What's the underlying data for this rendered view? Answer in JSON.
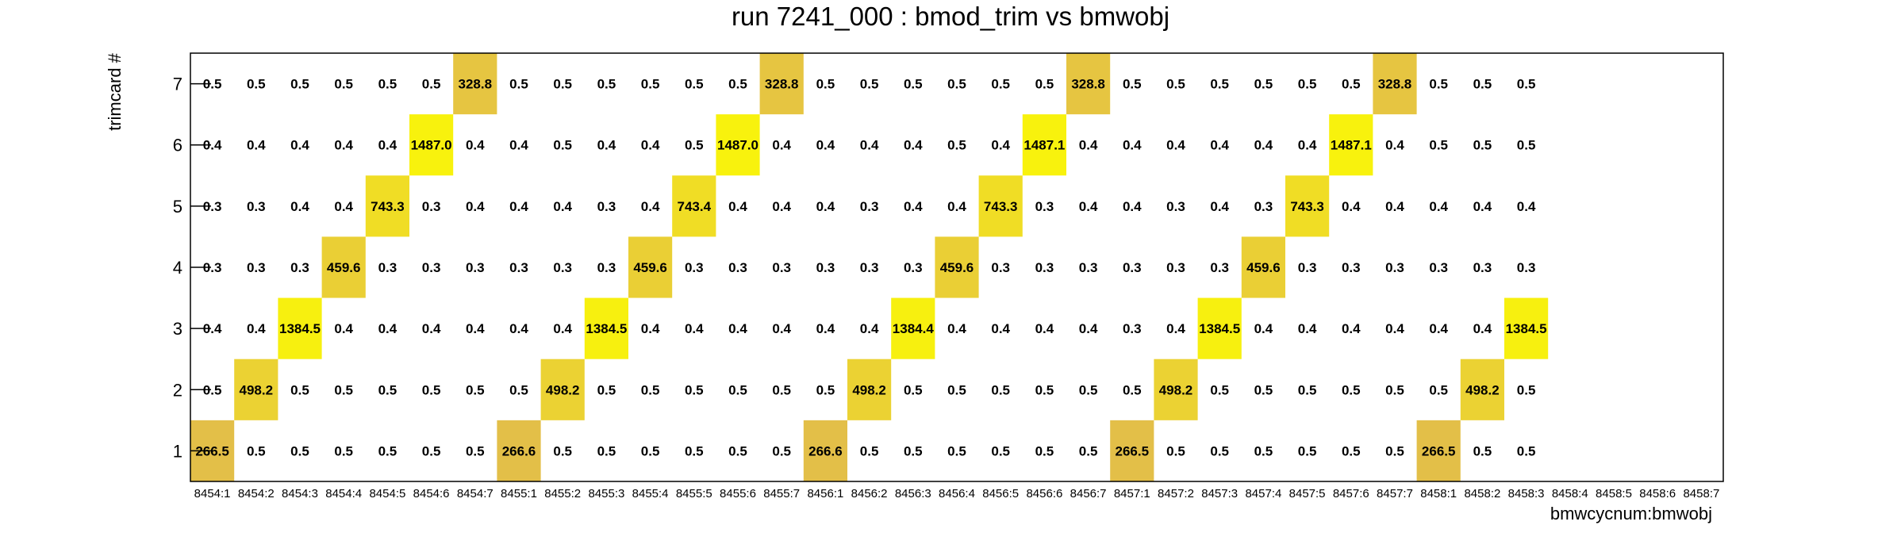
{
  "chart_data": {
    "type": "heatmap",
    "title": "run 7241_000 : bmod_trim vs bmwobj",
    "xlabel": "bmwcycnum:bmwobj",
    "ylabel": "trimcard #",
    "categories": [
      "8454:1",
      "8454:2",
      "8454:3",
      "8454:4",
      "8454:5",
      "8454:6",
      "8454:7",
      "8455:1",
      "8455:2",
      "8455:3",
      "8455:4",
      "8455:5",
      "8455:6",
      "8455:7",
      "8456:1",
      "8456:2",
      "8456:3",
      "8456:4",
      "8456:5",
      "8456:6",
      "8456:7",
      "8457:1",
      "8457:2",
      "8457:3",
      "8457:4",
      "8457:5",
      "8457:6",
      "8457:7",
      "8458:1",
      "8458:2",
      "8458:3",
      "8458:4",
      "8458:5",
      "8458:6",
      "8458:7"
    ],
    "y": [
      "1",
      "2",
      "3",
      "4",
      "5",
      "6",
      "7"
    ],
    "values": [
      [
        "266.5",
        "0.5",
        "0.5",
        "0.5",
        "0.5",
        "0.5",
        "0.5",
        "266.6",
        "0.5",
        "0.5",
        "0.5",
        "0.5",
        "0.5",
        "0.5",
        "266.6",
        "0.5",
        "0.5",
        "0.5",
        "0.5",
        "0.5",
        "0.5",
        "266.5",
        "0.5",
        "0.5",
        "0.5",
        "0.5",
        "0.5",
        "0.5",
        "266.5",
        "0.5",
        "0.5",
        null,
        null,
        null,
        null
      ],
      [
        "0.5",
        "498.2",
        "0.5",
        "0.5",
        "0.5",
        "0.5",
        "0.5",
        "0.5",
        "498.2",
        "0.5",
        "0.5",
        "0.5",
        "0.5",
        "0.5",
        "0.5",
        "498.2",
        "0.5",
        "0.5",
        "0.5",
        "0.5",
        "0.5",
        "0.5",
        "498.2",
        "0.5",
        "0.5",
        "0.5",
        "0.5",
        "0.5",
        "0.5",
        "498.2",
        "0.5",
        null,
        null,
        null,
        null
      ],
      [
        "0.4",
        "0.4",
        "1384.5",
        "0.4",
        "0.4",
        "0.4",
        "0.4",
        "0.4",
        "0.4",
        "1384.5",
        "0.4",
        "0.4",
        "0.4",
        "0.4",
        "0.4",
        "0.4",
        "1384.4",
        "0.4",
        "0.4",
        "0.4",
        "0.4",
        "0.3",
        "0.4",
        "1384.5",
        "0.4",
        "0.4",
        "0.4",
        "0.4",
        "0.4",
        "0.4",
        "1384.5",
        null,
        null,
        null,
        null
      ],
      [
        "0.3",
        "0.3",
        "0.3",
        "459.6",
        "0.3",
        "0.3",
        "0.3",
        "0.3",
        "0.3",
        "0.3",
        "459.6",
        "0.3",
        "0.3",
        "0.3",
        "0.3",
        "0.3",
        "0.3",
        "459.6",
        "0.3",
        "0.3",
        "0.3",
        "0.3",
        "0.3",
        "0.3",
        "459.6",
        "0.3",
        "0.3",
        "0.3",
        "0.3",
        "0.3",
        "0.3",
        null,
        null,
        null,
        null
      ],
      [
        "0.3",
        "0.3",
        "0.4",
        "0.4",
        "743.3",
        "0.3",
        "0.4",
        "0.4",
        "0.4",
        "0.3",
        "0.4",
        "743.4",
        "0.4",
        "0.4",
        "0.4",
        "0.3",
        "0.4",
        "0.4",
        "743.3",
        "0.3",
        "0.4",
        "0.4",
        "0.3",
        "0.4",
        "0.3",
        "743.3",
        "0.4",
        "0.4",
        "0.4",
        "0.4",
        "0.4",
        null,
        null,
        null,
        null
      ],
      [
        "0.4",
        "0.4",
        "0.4",
        "0.4",
        "0.4",
        "1487.0",
        "0.4",
        "0.4",
        "0.5",
        "0.4",
        "0.4",
        "0.5",
        "1487.0",
        "0.4",
        "0.4",
        "0.4",
        "0.4",
        "0.5",
        "0.4",
        "1487.1",
        "0.4",
        "0.4",
        "0.4",
        "0.4",
        "0.4",
        "0.4",
        "1487.1",
        "0.4",
        "0.5",
        "0.5",
        "0.5",
        null,
        null,
        null,
        null
      ],
      [
        "0.5",
        "0.5",
        "0.5",
        "0.5",
        "0.5",
        "0.5",
        "328.8",
        "0.5",
        "0.5",
        "0.5",
        "0.5",
        "0.5",
        "0.5",
        "328.8",
        "0.5",
        "0.5",
        "0.5",
        "0.5",
        "0.5",
        "0.5",
        "328.8",
        "0.5",
        "0.5",
        "0.5",
        "0.5",
        "0.5",
        "0.5",
        "328.8",
        "0.5",
        "0.5",
        "0.5",
        null,
        null,
        null,
        null
      ]
    ],
    "colors": {
      "low": "#e3bf48",
      "high": "#f8f20d"
    },
    "grid": false,
    "legend": "none"
  }
}
